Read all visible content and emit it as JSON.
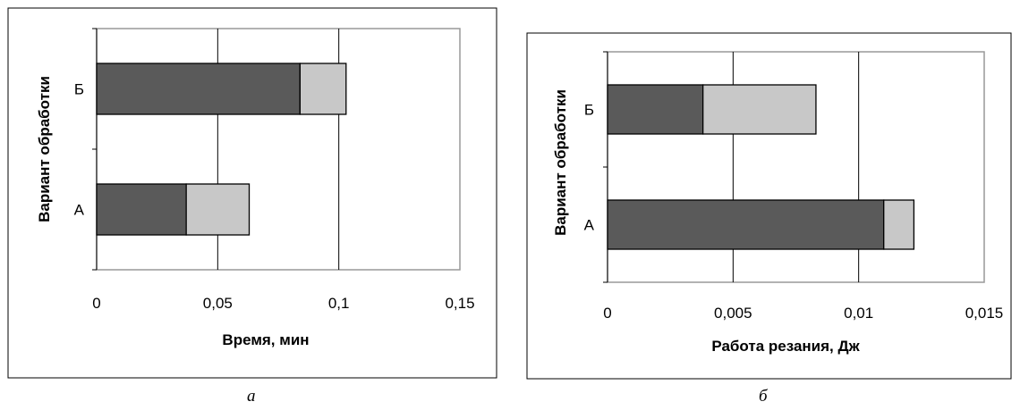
{
  "chart_data": [
    {
      "type": "bar",
      "orientation": "horizontal",
      "stacked": true,
      "caption": "а",
      "categories": [
        "А",
        "Б"
      ],
      "series": [
        {
          "values": [
            0.037,
            0.084
          ],
          "color": "#5a5a5a"
        },
        {
          "values": [
            0.026,
            0.019
          ],
          "color": "#c8c8c8"
        }
      ],
      "xlabel": "Время, мин",
      "ylabel": "Вариант обработки",
      "xlim": [
        0,
        0.15
      ],
      "x_ticks": [
        "0",
        "0,05",
        "0,1",
        "0,15"
      ],
      "grid": true,
      "legend": "none"
    },
    {
      "type": "bar",
      "orientation": "horizontal",
      "stacked": true,
      "caption": "б",
      "categories": [
        "А",
        "Б"
      ],
      "series": [
        {
          "values": [
            0.011,
            0.0038
          ],
          "color": "#5a5a5a"
        },
        {
          "values": [
            0.0012,
            0.0045
          ],
          "color": "#c8c8c8"
        }
      ],
      "xlabel": "Работа резания, Дж",
      "ylabel": "Вариант обработки",
      "xlim": [
        0,
        0.015
      ],
      "x_ticks": [
        "0",
        "0,005",
        "0,01",
        "0,015"
      ],
      "grid": true,
      "legend": "none"
    }
  ]
}
